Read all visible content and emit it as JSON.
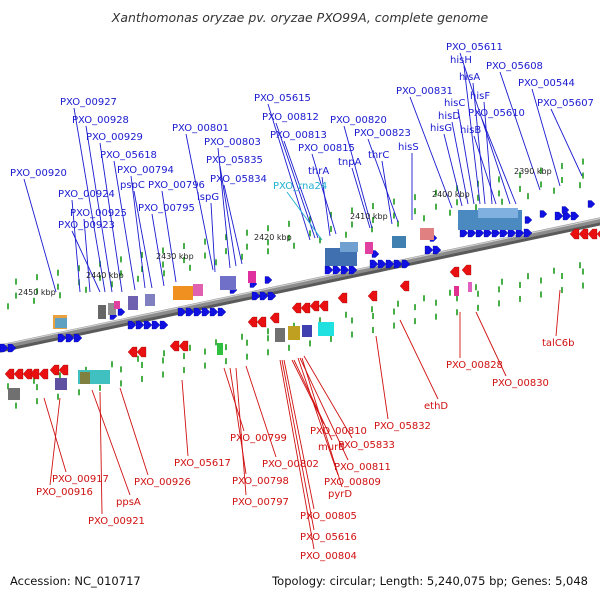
{
  "title": "Xanthomonas oryzae pv. oryzae PXO99A, complete genome",
  "accession_text": "Accession: NC_010717",
  "summary_text": "Topology: circular; Length: 5,240,075 bp; Genes: 5,048",
  "colors": {
    "forward_label": "#1a1ad0",
    "reverse_label": "#d01010",
    "rna_label": "#20b0d0",
    "forward_arrow": "#1010e0",
    "reverse_arrow": "#e81010",
    "backbone": "#8c8c8c",
    "tick": "#1a9a1a"
  },
  "kbp_labels": [
    "2450 kbp",
    "2440 kbp",
    "2430 kbp",
    "2420 kbp",
    "2410 kbp",
    "2400 kbp",
    "2390 kbp"
  ],
  "forward_genes": [
    "PXO_00920",
    "PXO_00924",
    "PXO_00925",
    "PXO_00923",
    "PXO_00927",
    "PXO_00928",
    "PXO_00929",
    "PXO_05618",
    "PXO_00794",
    "pspC",
    "PXO_00796",
    "PXO_00795",
    "PXO_00801",
    "PXO_00803",
    "ispG",
    "PXO_05835",
    "PXO_05834",
    "PXO_05615",
    "PXO_00812",
    "PXO_00813",
    "thrA",
    "PXO_00815",
    "PXO_00820",
    "tnpA",
    "thrC",
    "PXO_00823",
    "hisS",
    "PXO_00831",
    "hisG",
    "hisD",
    "hisC",
    "hisH",
    "hisA",
    "hisF",
    "hisB",
    "PXO_05611",
    "PXO_05608",
    "PXO_05610",
    "PXO_00544",
    "PXO_05607"
  ],
  "rna_genes": [
    "PXO_rna24"
  ],
  "reverse_genes": [
    "PXO_00917",
    "PXO_00916",
    "ppsA",
    "PXO_00921",
    "PXO_00926",
    "PXO_05617",
    "PXO_00799",
    "PXO_00802",
    "PXO_00798",
    "PXO_00797",
    "PXO_00810",
    "murB",
    "PXO_05833",
    "PXO_00811",
    "PXO_00809",
    "pyrD",
    "PXO_00805",
    "PXO_05616",
    "PXO_00804",
    "PXO_05832",
    "ethD",
    "PXO_00828",
    "PXO_00830",
    "talC6b"
  ]
}
